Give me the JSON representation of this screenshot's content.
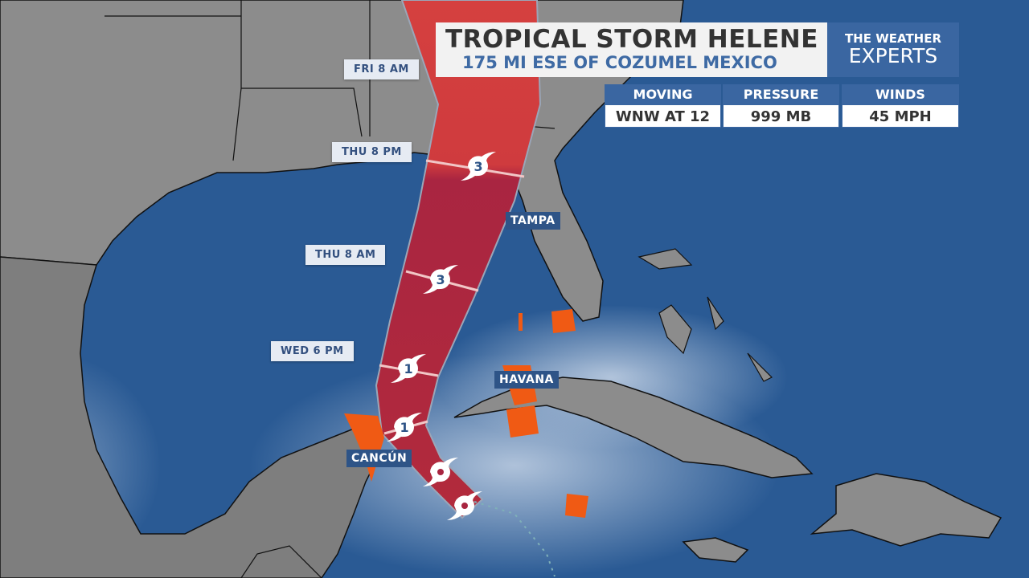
{
  "header": {
    "title": "TROPICAL STORM HELENE",
    "subtitle": "175 MI ESE OF COZUMEL MEXICO"
  },
  "logo": {
    "line1": "THE WEATHER",
    "line2": "EXPERTS"
  },
  "stats": [
    {
      "label": "MOVING",
      "value": "WNW AT 12"
    },
    {
      "label": "PRESSURE",
      "value": "999 MB"
    },
    {
      "label": "WINDS",
      "value": "45 MPH"
    }
  ],
  "forecast_times": [
    "FRI 8 AM",
    "THU 8 PM",
    "THU 8 AM",
    "WED 6 PM"
  ],
  "cities": [
    "TAMPA",
    "HAVANA",
    "CANCÚN"
  ],
  "storm_points": [
    {
      "category": "3"
    },
    {
      "category": "3"
    },
    {
      "category": "1"
    },
    {
      "category": "1"
    },
    {
      "category": ""
    },
    {
      "category": ""
    }
  ],
  "colors": {
    "ocean": "#2a5a94",
    "land": "#8c8c8c",
    "cone_upper": "#d03c3e",
    "cone_lower": "#aa2640",
    "warning": "#f05a14",
    "brand": "#3a66a1"
  }
}
